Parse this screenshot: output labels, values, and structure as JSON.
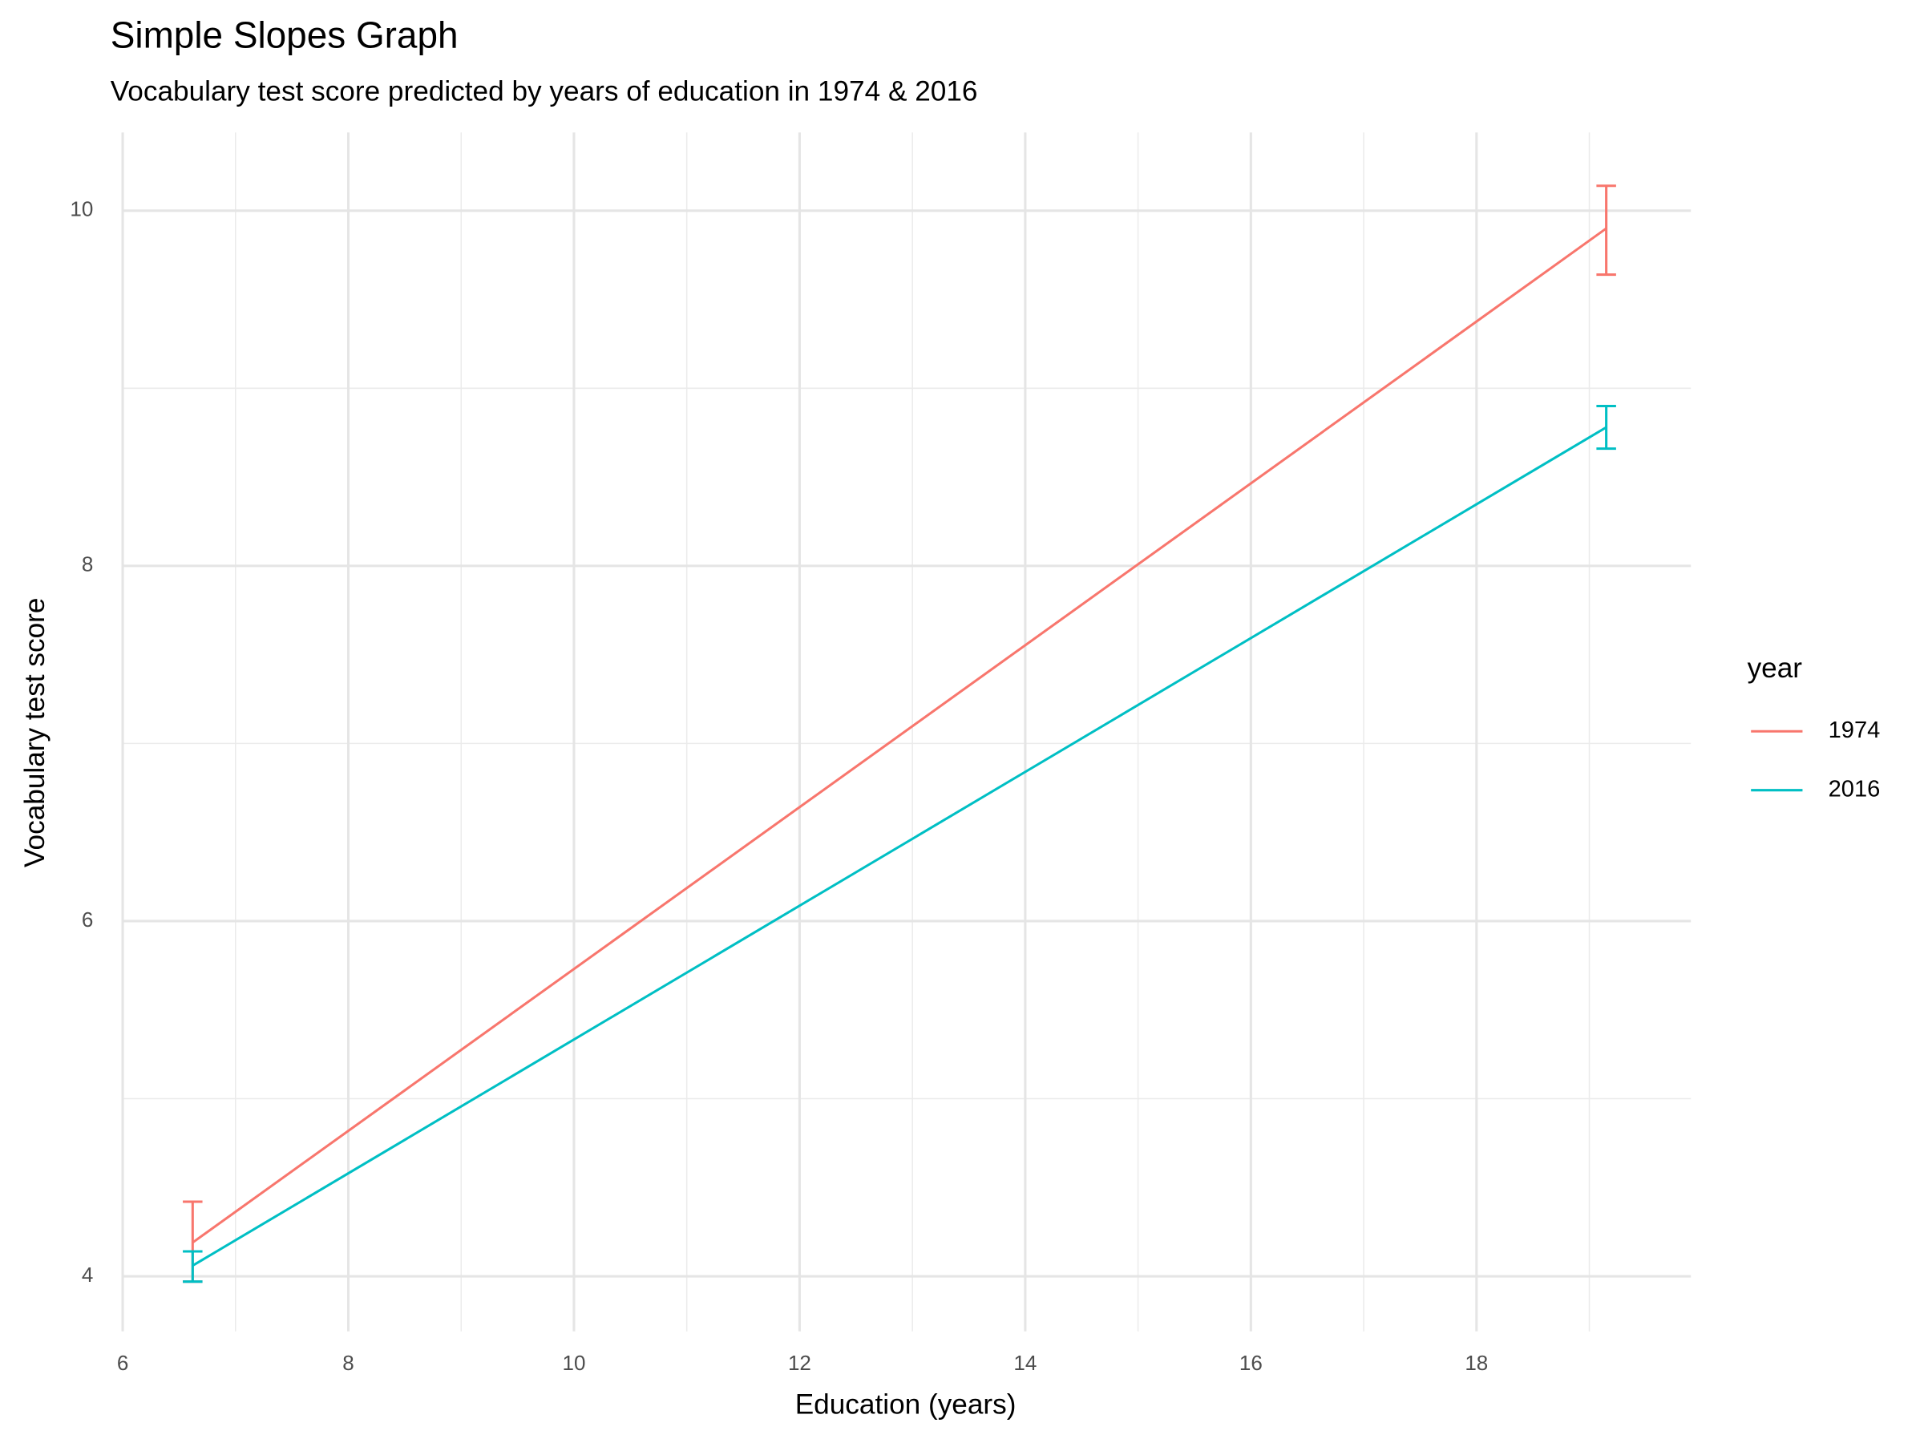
{
  "chart_data": {
    "type": "line",
    "title": "Simple Slopes Graph",
    "subtitle": "Vocabulary test score predicted by years of education in 1974 & 2016",
    "x_label": "Education (years)",
    "y_label": "Vocabulary test score",
    "legend_title": "year",
    "legend_position": "right",
    "x": [
      6.62,
      19.15
    ],
    "series": [
      {
        "name": "1974",
        "color": "#F8766D",
        "values": [
          4.19,
          9.9
        ],
        "lower": [
          3.97,
          9.64
        ],
        "upper": [
          4.42,
          10.14
        ]
      },
      {
        "name": "2016",
        "color": "#00BFC4",
        "values": [
          4.06,
          8.78
        ],
        "lower": [
          3.97,
          8.66
        ],
        "upper": [
          4.14,
          8.9
        ]
      }
    ],
    "xlim": [
      6,
      19.9
    ],
    "xticks": [
      6,
      8,
      10,
      12,
      14,
      16,
      18
    ],
    "xminor": [
      7,
      9,
      11,
      13,
      15,
      17,
      19
    ],
    "ylim": [
      3.69,
      10.44
    ],
    "yticks": [
      4,
      6,
      8,
      10
    ],
    "yminor": [
      5,
      7,
      9
    ],
    "grid": true
  }
}
